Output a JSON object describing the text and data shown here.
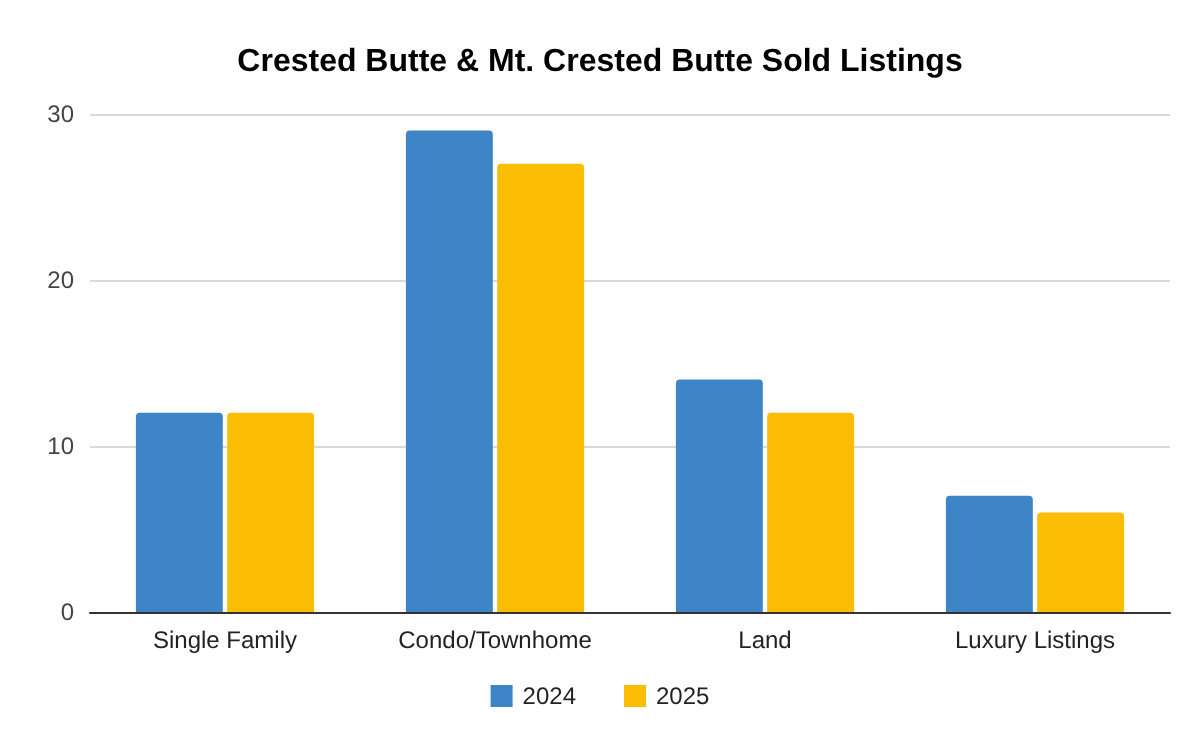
{
  "chart_data": {
    "type": "bar",
    "title": "Crested Butte & Mt. Crested Butte Sold Listings",
    "categories": [
      "Single Family",
      "Condo/Townhome",
      "Land",
      "Luxury Listings"
    ],
    "series": [
      {
        "name": "2024",
        "color": "#3d85c6",
        "values": [
          12,
          29,
          14,
          7
        ]
      },
      {
        "name": "2025",
        "color": "#fbbc04",
        "values": [
          12,
          27,
          12,
          6
        ]
      }
    ],
    "ylim": [
      0,
      30
    ],
    "yticks": [
      0,
      10,
      20,
      30
    ],
    "grid": "y",
    "legend": "bottom"
  }
}
